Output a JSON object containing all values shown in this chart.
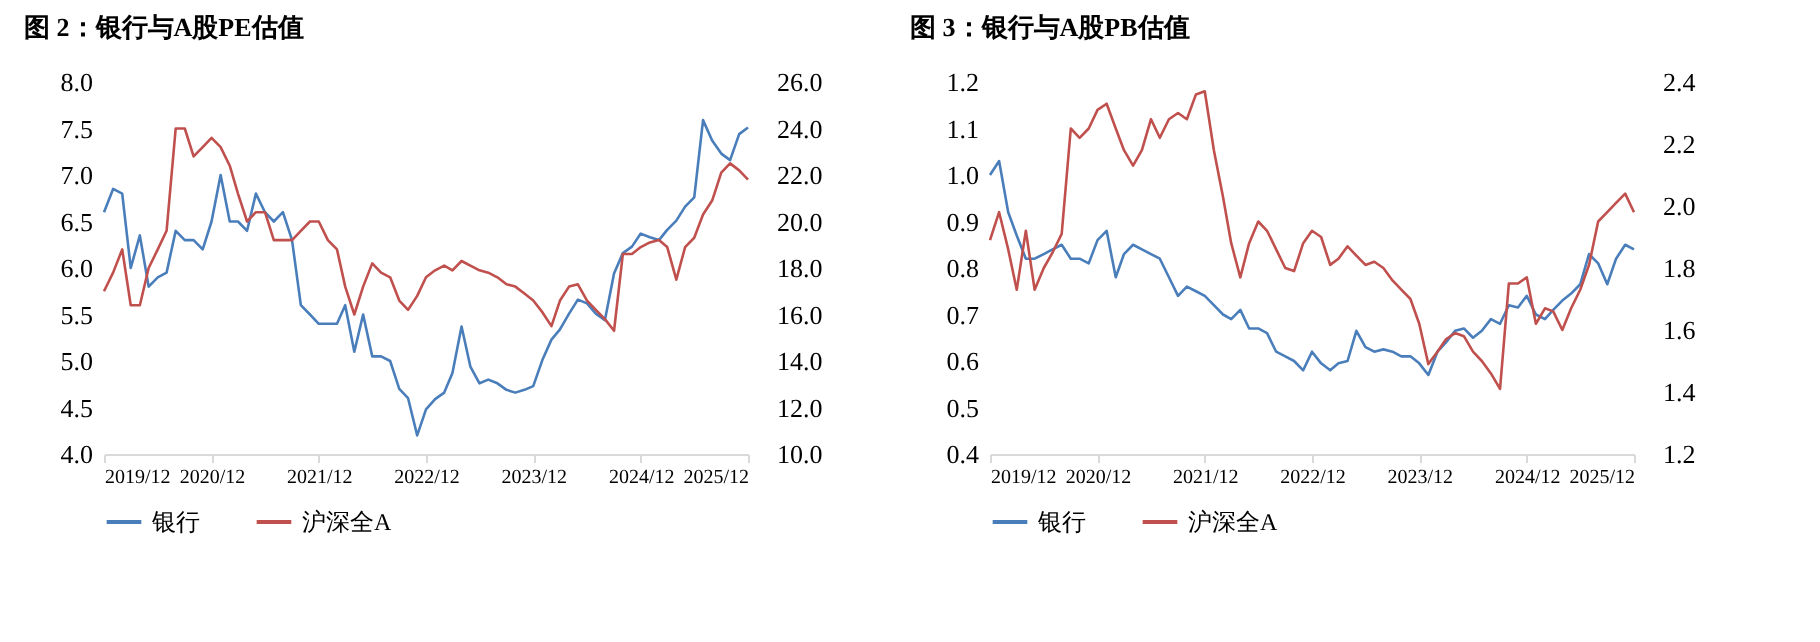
{
  "chart_data": [
    {
      "type": "line",
      "title": "图 2：银行与A股PE估值",
      "legend": "bottom",
      "x": [
        "2019-12",
        "2020-01",
        "2020-02",
        "2020-03",
        "2020-04",
        "2020-05",
        "2020-06",
        "2020-07",
        "2020-08",
        "2020-09",
        "2020-10",
        "2020-11",
        "2020-12",
        "2021-01",
        "2021-02",
        "2021-03",
        "2021-04",
        "2021-05",
        "2021-06",
        "2021-07",
        "2021-08",
        "2021-09",
        "2021-10",
        "2021-11",
        "2021-12",
        "2022-01",
        "2022-02",
        "2022-03",
        "2022-04",
        "2022-05",
        "2022-06",
        "2022-07",
        "2022-08",
        "2022-09",
        "2022-10",
        "2022-11",
        "2022-12",
        "2023-01",
        "2023-02",
        "2023-03",
        "2023-04",
        "2023-05",
        "2023-06",
        "2023-07",
        "2023-08",
        "2023-09",
        "2023-10",
        "2023-11",
        "2023-12",
        "2024-01",
        "2024-02",
        "2024-03",
        "2024-04",
        "2024-05",
        "2024-06",
        "2024-07",
        "2024-08",
        "2024-09",
        "2024-10",
        "2024-11",
        "2024-12",
        "2025-01",
        "2025-02",
        "2025-03",
        "2025-04",
        "2025-05",
        "2025-06",
        "2025-07",
        "2025-08",
        "2025-09",
        "2025-10",
        "2025-11",
        "2025-12"
      ],
      "xlim": [
        "2019-12",
        "2025-12"
      ],
      "xticks": [
        {
          "value": "2019-12",
          "label": "2019/12"
        },
        {
          "value": "2020-12",
          "label": "2020/12"
        },
        {
          "value": "2021-12",
          "label": "2021/12"
        },
        {
          "value": "2022-12",
          "label": "2022/12"
        },
        {
          "value": "2023-12",
          "label": "2023/12"
        },
        {
          "value": "2024-12",
          "label": "2024/12"
        },
        {
          "value": "2025-12",
          "label": "2025/12"
        }
      ],
      "ylim": [
        4,
        8
      ],
      "yticks": [
        {
          "value": 4,
          "label": "4.0"
        },
        {
          "value": 4.5,
          "label": "4.5"
        },
        {
          "value": 5,
          "label": "5.0"
        },
        {
          "value": 5.5,
          "label": "5.5"
        },
        {
          "value": 6,
          "label": "6.0"
        },
        {
          "value": 6.5,
          "label": "6.5"
        },
        {
          "value": 7,
          "label": "7.0"
        },
        {
          "value": 7.5,
          "label": "7.5"
        },
        {
          "value": 8,
          "label": "8.0"
        }
      ],
      "y2lim": [
        10,
        26
      ],
      "y2ticks": [
        {
          "value": 10,
          "label": "10.0"
        },
        {
          "value": 12,
          "label": "12.0"
        },
        {
          "value": 14,
          "label": "14.0"
        },
        {
          "value": 16,
          "label": "16.0"
        },
        {
          "value": 18,
          "label": "18.0"
        },
        {
          "value": 20,
          "label": "20.0"
        },
        {
          "value": 22,
          "label": "22.0"
        },
        {
          "value": 24,
          "label": "24.0"
        },
        {
          "value": 26,
          "label": "26.0"
        }
      ],
      "series": [
        {
          "name": "银行",
          "color": "#4a7ebb",
          "values": [
            6.6,
            6.85,
            6.8,
            6.0,
            6.35,
            5.8,
            5.9,
            5.95,
            6.4,
            6.3,
            6.3,
            6.2,
            6.5,
            7.0,
            6.5,
            6.5,
            6.4,
            6.8,
            6.6,
            6.5,
            6.6,
            6.3,
            5.6,
            5.5,
            5.4,
            5.4,
            5.4,
            5.6,
            5.1,
            5.5,
            5.05,
            5.05,
            5.0,
            4.7,
            4.6,
            4.2,
            4.48,
            4.59,
            4.66,
            4.87,
            5.37,
            4.94,
            4.76,
            4.8,
            4.76,
            4.69,
            4.66,
            4.69,
            4.73,
            5.01,
            5.23,
            5.34,
            5.51,
            5.66,
            5.62,
            5.51,
            5.44,
            5.94,
            6.16,
            6.23,
            6.37,
            6.33,
            6.3,
            6.41,
            6.51,
            6.66,
            6.76,
            7.59,
            7.37,
            7.23,
            7.16,
            7.44,
            7.51
          ]
        },
        {
          "name": "沪深全A",
          "color": "#c0504d",
          "axis": "y2",
          "values": [
            17.0,
            17.8,
            18.8,
            16.4,
            16.4,
            18.0,
            18.8,
            19.6,
            24.0,
            24.0,
            22.8,
            23.2,
            23.6,
            23.2,
            22.4,
            21.2,
            20.0,
            20.4,
            20.4,
            19.2,
            19.2,
            19.2,
            19.6,
            20.0,
            20.0,
            19.2,
            18.8,
            17.2,
            16.0,
            17.2,
            18.2,
            17.8,
            17.6,
            16.6,
            16.2,
            16.8,
            17.6,
            17.9,
            18.1,
            17.9,
            18.3,
            18.1,
            17.9,
            17.8,
            17.6,
            17.3,
            17.2,
            16.9,
            16.6,
            16.1,
            15.5,
            16.6,
            17.2,
            17.3,
            16.6,
            16.2,
            15.8,
            15.3,
            18.6,
            18.6,
            18.9,
            19.1,
            19.2,
            18.9,
            17.5,
            18.9,
            19.3,
            20.3,
            20.9,
            22.1,
            22.5,
            22.2,
            21.8
          ]
        }
      ]
    },
    {
      "type": "line",
      "title": "图 3：银行与A股PB估值",
      "legend": "bottom",
      "x": [
        "2019-12",
        "2020-01",
        "2020-02",
        "2020-03",
        "2020-04",
        "2020-05",
        "2020-06",
        "2020-07",
        "2020-08",
        "2020-09",
        "2020-10",
        "2020-11",
        "2020-12",
        "2021-01",
        "2021-02",
        "2021-03",
        "2021-04",
        "2021-05",
        "2021-06",
        "2021-07",
        "2021-08",
        "2021-09",
        "2021-10",
        "2021-11",
        "2021-12",
        "2022-01",
        "2022-02",
        "2022-03",
        "2022-04",
        "2022-05",
        "2022-06",
        "2022-07",
        "2022-08",
        "2022-09",
        "2022-10",
        "2022-11",
        "2022-12",
        "2023-01",
        "2023-02",
        "2023-03",
        "2023-04",
        "2023-05",
        "2023-06",
        "2023-07",
        "2023-08",
        "2023-09",
        "2023-10",
        "2023-11",
        "2023-12",
        "2024-01",
        "2024-02",
        "2024-03",
        "2024-04",
        "2024-05",
        "2024-06",
        "2024-07",
        "2024-08",
        "2024-09",
        "2024-10",
        "2024-11",
        "2024-12",
        "2025-01",
        "2025-02",
        "2025-03",
        "2025-04",
        "2025-05",
        "2025-06",
        "2025-07",
        "2025-08",
        "2025-09",
        "2025-10",
        "2025-11",
        "2025-12"
      ],
      "xlim": [
        "2019-12",
        "2025-12"
      ],
      "xticks": [
        {
          "value": "2019-12",
          "label": "2019/12"
        },
        {
          "value": "2020-12",
          "label": "2020/12"
        },
        {
          "value": "2021-12",
          "label": "2021/12"
        },
        {
          "value": "2022-12",
          "label": "2022/12"
        },
        {
          "value": "2023-12",
          "label": "2023/12"
        },
        {
          "value": "2024-12",
          "label": "2024/12"
        },
        {
          "value": "2025-12",
          "label": "2025/12"
        }
      ],
      "ylim": [
        0.4,
        1.2
      ],
      "yticks": [
        {
          "value": 0.4,
          "label": "0.4"
        },
        {
          "value": 0.5,
          "label": "0.5"
        },
        {
          "value": 0.6,
          "label": "0.6"
        },
        {
          "value": 0.7,
          "label": "0.7"
        },
        {
          "value": 0.8,
          "label": "0.8"
        },
        {
          "value": 0.9,
          "label": "0.9"
        },
        {
          "value": 1,
          "label": "1.0"
        },
        {
          "value": 1.1,
          "label": "1.1"
        },
        {
          "value": 1.2,
          "label": "1.2"
        }
      ],
      "y2lim": [
        1.2,
        2.4
      ],
      "y2ticks": [
        {
          "value": 1.2,
          "label": "1.2"
        },
        {
          "value": 1.4,
          "label": "1.4"
        },
        {
          "value": 1.6,
          "label": "1.6"
        },
        {
          "value": 1.8,
          "label": "1.8"
        },
        {
          "value": 2,
          "label": "2.0"
        },
        {
          "value": 2.2,
          "label": "2.2"
        },
        {
          "value": 2.4,
          "label": "2.4"
        }
      ],
      "series": [
        {
          "name": "银行",
          "color": "#4a7ebb",
          "values": [
            1.0,
            1.03,
            0.92,
            0.87,
            0.82,
            0.82,
            0.83,
            0.84,
            0.85,
            0.82,
            0.82,
            0.81,
            0.86,
            0.88,
            0.78,
            0.83,
            0.85,
            0.84,
            0.83,
            0.82,
            0.78,
            0.74,
            0.76,
            0.75,
            0.74,
            0.72,
            0.7,
            0.69,
            0.71,
            0.67,
            0.67,
            0.66,
            0.62,
            0.61,
            0.6,
            0.58,
            0.62,
            0.595,
            0.58,
            0.595,
            0.6,
            0.665,
            0.63,
            0.62,
            0.625,
            0.62,
            0.61,
            0.61,
            0.595,
            0.57,
            0.62,
            0.64,
            0.665,
            0.67,
            0.65,
            0.665,
            0.69,
            0.68,
            0.72,
            0.715,
            0.74,
            0.7,
            0.69,
            0.71,
            0.73,
            0.745,
            0.765,
            0.83,
            0.81,
            0.765,
            0.82,
            0.85,
            0.84
          ]
        },
        {
          "name": "沪深全A",
          "color": "#c0504d",
          "axis": "y2",
          "values": [
            1.89,
            1.98,
            1.86,
            1.73,
            1.92,
            1.73,
            1.8,
            1.85,
            1.91,
            2.25,
            2.22,
            2.25,
            2.31,
            2.33,
            2.25,
            2.18,
            2.13,
            2.18,
            2.28,
            2.22,
            2.28,
            2.3,
            2.28,
            2.36,
            2.37,
            2.18,
            2.03,
            1.88,
            1.77,
            1.88,
            1.95,
            1.92,
            1.86,
            1.8,
            1.79,
            1.88,
            1.92,
            1.9,
            1.81,
            1.83,
            1.87,
            1.84,
            1.81,
            1.82,
            1.8,
            1.76,
            1.73,
            1.7,
            1.62,
            1.49,
            1.53,
            1.57,
            1.59,
            1.58,
            1.53,
            1.5,
            1.46,
            1.41,
            1.75,
            1.75,
            1.77,
            1.62,
            1.67,
            1.66,
            1.6,
            1.67,
            1.73,
            1.81,
            1.95,
            1.98,
            2.01,
            2.04,
            1.98
          ]
        }
      ]
    }
  ]
}
